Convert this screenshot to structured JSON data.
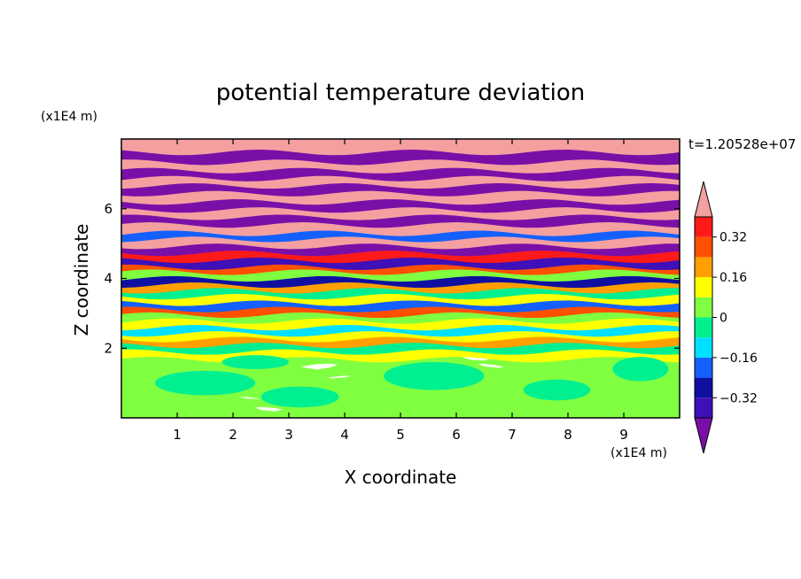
{
  "chart_data": {
    "type": "heatmap",
    "title": "potential temperature deviation",
    "xlabel": "X coordinate",
    "ylabel": "Z coordinate",
    "x_unit": "(x1E4 m)",
    "y_unit": "(x1E4 m)",
    "time_label": "t=1.20528e+07",
    "xlim": [
      0,
      10
    ],
    "ylim": [
      0,
      8
    ],
    "x_ticks": [
      1,
      2,
      3,
      4,
      5,
      6,
      7,
      8,
      9
    ],
    "y_ticks": [
      2,
      4,
      6
    ],
    "colorbar": {
      "levels": [
        -0.4,
        -0.32,
        -0.24,
        -0.16,
        -0.08,
        0,
        0.08,
        0.16,
        0.24,
        0.32,
        0.4
      ],
      "tick_labels": [
        "0.32",
        "0.16",
        "0",
        "−0.16",
        "−0.32"
      ],
      "tick_values": [
        0.32,
        0.16,
        0,
        -0.16,
        -0.32
      ],
      "colors": [
        "#7a0fa8",
        "#3d10b8",
        "#1010a0",
        "#1460ff",
        "#00e0ff",
        "#00f090",
        "#80ff40",
        "#ffff00",
        "#ffa000",
        "#ff5000",
        "#ff1a1a",
        "#f4a0a0"
      ],
      "extend": "both"
    },
    "bands": [
      {
        "z": 0.15,
        "v": 0.04
      },
      {
        "z": 0.45,
        "v": 0.06
      },
      {
        "z": 0.75,
        "v": 0.03
      },
      {
        "z": 1.05,
        "v": 0.07
      },
      {
        "z": 1.35,
        "v": 0.04
      },
      {
        "z": 1.65,
        "v": 0.06
      },
      {
        "z": 1.9,
        "v": 0.12
      },
      {
        "z": 2.1,
        "v": -0.05
      },
      {
        "z": 2.28,
        "v": 0.22
      },
      {
        "z": 2.45,
        "v": 0.1
      },
      {
        "z": 2.62,
        "v": -0.12
      },
      {
        "z": 2.8,
        "v": 0.15
      },
      {
        "z": 2.98,
        "v": 0.02
      },
      {
        "z": 3.15,
        "v": 0.28
      },
      {
        "z": 3.32,
        "v": -0.2
      },
      {
        "z": 3.5,
        "v": 0.12
      },
      {
        "z": 3.68,
        "v": -0.08
      },
      {
        "z": 3.85,
        "v": 0.2
      },
      {
        "z": 4.02,
        "v": -0.3
      },
      {
        "z": 4.2,
        "v": 0.05
      },
      {
        "z": 4.38,
        "v": 0.3
      },
      {
        "z": 4.55,
        "v": -0.35
      },
      {
        "z": 4.75,
        "v": 0.36
      },
      {
        "z": 4.95,
        "v": -0.42
      },
      {
        "z": 5.15,
        "v": 0.42
      },
      {
        "z": 5.35,
        "v": -0.24
      },
      {
        "z": 5.55,
        "v": 0.42
      },
      {
        "z": 5.78,
        "v": -0.42
      },
      {
        "z": 6.0,
        "v": 0.45
      },
      {
        "z": 6.22,
        "v": -0.45
      },
      {
        "z": 6.45,
        "v": 0.45
      },
      {
        "z": 6.68,
        "v": -0.45
      },
      {
        "z": 6.9,
        "v": 0.45
      },
      {
        "z": 7.12,
        "v": -0.45
      },
      {
        "z": 7.35,
        "v": 0.45
      },
      {
        "z": 7.58,
        "v": -0.45
      },
      {
        "z": 7.8,
        "v": 0.45
      },
      {
        "z": 7.95,
        "v": 0.45
      }
    ]
  }
}
